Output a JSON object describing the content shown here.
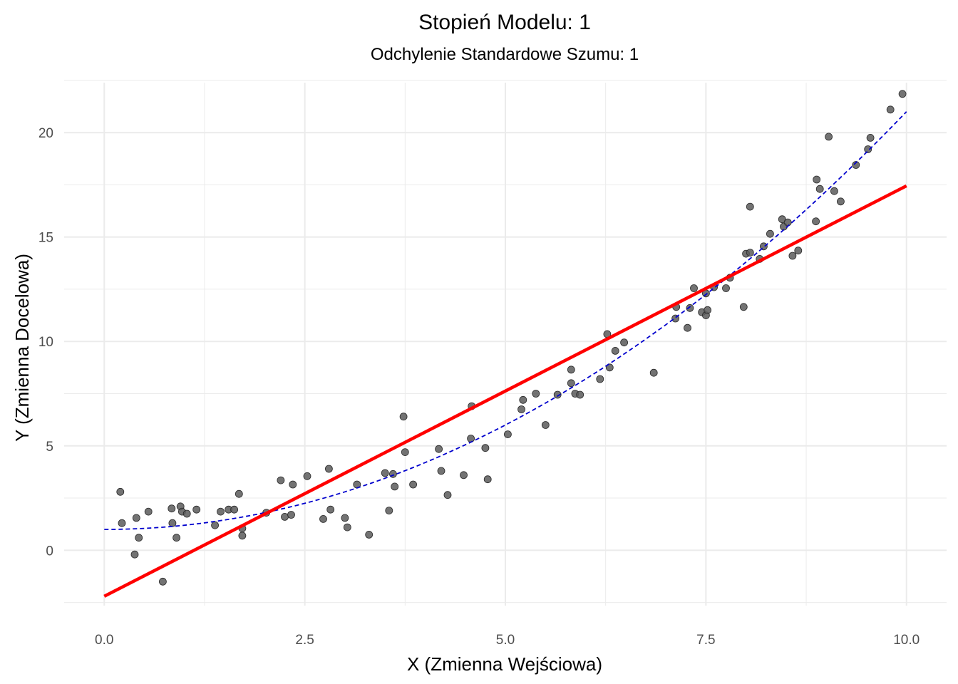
{
  "chart_data": {
    "type": "scatter",
    "title": "Stopień Modelu: 1",
    "subtitle": "Odchylenie Standardowe Szumu: 1",
    "xlabel": "X (Zmienna Wejściowa)",
    "ylabel": "Y (Zmienna Docelowa)",
    "xlim": [
      -0.5,
      10.5
    ],
    "ylim": [
      -3.4,
      22.8
    ],
    "x_ticks": [
      {
        "value": 0,
        "label": "0.0"
      },
      {
        "value": 2.5,
        "label": "2.5"
      },
      {
        "value": 5,
        "label": "5.0"
      },
      {
        "value": 7.5,
        "label": "7.5"
      },
      {
        "value": 10,
        "label": "10.0"
      }
    ],
    "y_ticks": [
      {
        "value": 0,
        "label": "0"
      },
      {
        "value": 5,
        "label": "5"
      },
      {
        "value": 10,
        "label": "10"
      },
      {
        "value": 15,
        "label": "15"
      },
      {
        "value": 20,
        "label": "20"
      }
    ],
    "grid": true,
    "colors": {
      "points": "#5a5a5a",
      "fit_line": "#ff0000",
      "true_curve": "#0000cd",
      "grid": "#ebebeb"
    },
    "fit_line": {
      "x": [
        0,
        10
      ],
      "y": [
        -2.2,
        17.45
      ]
    },
    "true_curve": {
      "x_start": 0,
      "x_end": 10,
      "a": 0.2,
      "b": 0,
      "c": 1
    },
    "points": [
      {
        "x": 0.2,
        "y": 2.8
      },
      {
        "x": 0.22,
        "y": 1.3
      },
      {
        "x": 0.38,
        "y": -0.2
      },
      {
        "x": 0.4,
        "y": 1.55
      },
      {
        "x": 0.43,
        "y": 0.6
      },
      {
        "x": 0.55,
        "y": 1.85
      },
      {
        "x": 0.73,
        "y": -1.5
      },
      {
        "x": 0.84,
        "y": 2.0
      },
      {
        "x": 0.85,
        "y": 1.3
      },
      {
        "x": 0.9,
        "y": 0.6
      },
      {
        "x": 0.95,
        "y": 2.1
      },
      {
        "x": 0.97,
        "y": 1.85
      },
      {
        "x": 1.03,
        "y": 1.75
      },
      {
        "x": 1.15,
        "y": 1.95
      },
      {
        "x": 1.38,
        "y": 1.2
      },
      {
        "x": 1.45,
        "y": 1.85
      },
      {
        "x": 1.55,
        "y": 1.95
      },
      {
        "x": 1.62,
        "y": 1.95
      },
      {
        "x": 1.68,
        "y": 2.7
      },
      {
        "x": 1.72,
        "y": 1.05
      },
      {
        "x": 1.72,
        "y": 0.7
      },
      {
        "x": 2.02,
        "y": 1.8
      },
      {
        "x": 2.2,
        "y": 3.35
      },
      {
        "x": 2.25,
        "y": 1.6
      },
      {
        "x": 2.33,
        "y": 1.7
      },
      {
        "x": 2.35,
        "y": 3.15
      },
      {
        "x": 2.53,
        "y": 3.55
      },
      {
        "x": 2.73,
        "y": 1.5
      },
      {
        "x": 2.8,
        "y": 3.9
      },
      {
        "x": 2.82,
        "y": 1.95
      },
      {
        "x": 3.0,
        "y": 1.55
      },
      {
        "x": 3.03,
        "y": 1.1
      },
      {
        "x": 3.15,
        "y": 3.15
      },
      {
        "x": 3.3,
        "y": 0.75
      },
      {
        "x": 3.5,
        "y": 3.7
      },
      {
        "x": 3.55,
        "y": 1.9
      },
      {
        "x": 3.6,
        "y": 3.65
      },
      {
        "x": 3.62,
        "y": 3.05
      },
      {
        "x": 3.73,
        "y": 6.4
      },
      {
        "x": 3.75,
        "y": 4.7
      },
      {
        "x": 3.85,
        "y": 3.15
      },
      {
        "x": 4.17,
        "y": 4.85
      },
      {
        "x": 4.2,
        "y": 3.8
      },
      {
        "x": 4.28,
        "y": 2.65
      },
      {
        "x": 4.48,
        "y": 3.6
      },
      {
        "x": 4.57,
        "y": 5.35
      },
      {
        "x": 4.58,
        "y": 6.9
      },
      {
        "x": 4.75,
        "y": 4.9
      },
      {
        "x": 4.78,
        "y": 3.4
      },
      {
        "x": 5.03,
        "y": 5.55
      },
      {
        "x": 5.2,
        "y": 6.75
      },
      {
        "x": 5.22,
        "y": 7.2
      },
      {
        "x": 5.38,
        "y": 7.5
      },
      {
        "x": 5.5,
        "y": 6.0
      },
      {
        "x": 5.65,
        "y": 7.45
      },
      {
        "x": 5.82,
        "y": 8.65
      },
      {
        "x": 5.82,
        "y": 8.0
      },
      {
        "x": 5.87,
        "y": 7.5
      },
      {
        "x": 5.93,
        "y": 7.45
      },
      {
        "x": 6.18,
        "y": 8.2
      },
      {
        "x": 6.27,
        "y": 10.35
      },
      {
        "x": 6.3,
        "y": 8.75
      },
      {
        "x": 6.37,
        "y": 9.55
      },
      {
        "x": 6.48,
        "y": 9.95
      },
      {
        "x": 6.85,
        "y": 8.5
      },
      {
        "x": 7.12,
        "y": 11.1
      },
      {
        "x": 7.13,
        "y": 11.65
      },
      {
        "x": 7.27,
        "y": 10.65
      },
      {
        "x": 7.3,
        "y": 11.6
      },
      {
        "x": 7.35,
        "y": 12.55
      },
      {
        "x": 7.45,
        "y": 11.4
      },
      {
        "x": 7.5,
        "y": 11.25
      },
      {
        "x": 7.52,
        "y": 11.5
      },
      {
        "x": 7.5,
        "y": 12.3
      },
      {
        "x": 7.6,
        "y": 12.6
      },
      {
        "x": 7.75,
        "y": 12.55
      },
      {
        "x": 7.8,
        "y": 13.05
      },
      {
        "x": 7.97,
        "y": 11.65
      },
      {
        "x": 8.0,
        "y": 14.2
      },
      {
        "x": 8.05,
        "y": 14.25
      },
      {
        "x": 8.05,
        "y": 16.45
      },
      {
        "x": 8.17,
        "y": 13.95
      },
      {
        "x": 8.22,
        "y": 14.55
      },
      {
        "x": 8.3,
        "y": 15.15
      },
      {
        "x": 8.45,
        "y": 15.85
      },
      {
        "x": 8.47,
        "y": 15.5
      },
      {
        "x": 8.52,
        "y": 15.7
      },
      {
        "x": 8.58,
        "y": 14.1
      },
      {
        "x": 8.65,
        "y": 14.35
      },
      {
        "x": 8.87,
        "y": 15.75
      },
      {
        "x": 8.88,
        "y": 17.75
      },
      {
        "x": 8.92,
        "y": 17.3
      },
      {
        "x": 9.03,
        "y": 19.8
      },
      {
        "x": 9.1,
        "y": 17.2
      },
      {
        "x": 9.18,
        "y": 16.7
      },
      {
        "x": 9.37,
        "y": 18.45
      },
      {
        "x": 9.52,
        "y": 19.2
      },
      {
        "x": 9.55,
        "y": 19.75
      },
      {
        "x": 9.8,
        "y": 21.1
      },
      {
        "x": 9.95,
        "y": 21.85
      }
    ]
  }
}
